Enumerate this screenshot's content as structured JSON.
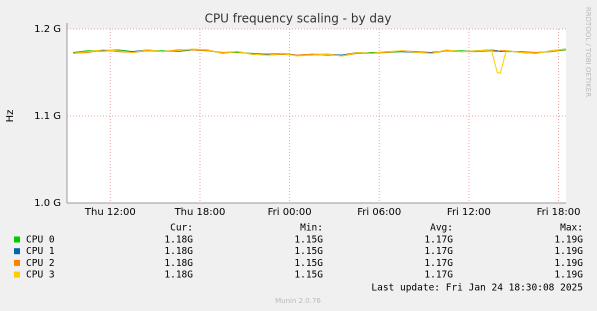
{
  "chart_data": {
    "type": "line",
    "title": "CPU frequency scaling - by day",
    "y_label": "Hz",
    "side_text": "RRDTOOL / TOBI OETIKER",
    "x": [
      9.5,
      10.5,
      11.5,
      12.5,
      13.5,
      14.5,
      15.5,
      16.5,
      17.5,
      18.5,
      19.5,
      20.5,
      21.5,
      22.5,
      23.5,
      24.5,
      25.5,
      26.5,
      27.5,
      28.5,
      29.5,
      30.5,
      31.5,
      32.5,
      33.5,
      34.5,
      35.5,
      36.5,
      37.5,
      37.9,
      38.1,
      38.5,
      39.5,
      40.5,
      41.5,
      42.5
    ],
    "xlim": [
      9.1,
      42.5
    ],
    "xticks": [
      {
        "value": 12,
        "label": "Thu 12:00"
      },
      {
        "value": 18,
        "label": "Thu 18:00"
      },
      {
        "value": 24,
        "label": "Fri 00:00"
      },
      {
        "value": 30,
        "label": "Fri 06:00"
      },
      {
        "value": 36,
        "label": "Fri 12:00"
      },
      {
        "value": 42,
        "label": "Fri 18:00"
      }
    ],
    "ylim": [
      1.0,
      1.2
    ],
    "yticks": [
      {
        "value": 1.0,
        "label": "1.0 G"
      },
      {
        "value": 1.1,
        "label": "1.1 G"
      },
      {
        "value": 1.2,
        "label": "1.2 G"
      }
    ],
    "grid": true,
    "series": [
      {
        "name": "CPU 0",
        "color": "#00cc00",
        "values": [
          1.173,
          1.175,
          1.175,
          1.176,
          1.174,
          1.175,
          1.175,
          1.174,
          1.176,
          1.175,
          1.173,
          1.173,
          1.172,
          1.171,
          1.171,
          1.17,
          1.171,
          1.17,
          1.17,
          1.172,
          1.173,
          1.173,
          1.174,
          1.174,
          1.173,
          1.175,
          1.175,
          1.174,
          1.175,
          1.174,
          1.175,
          1.174,
          1.174,
          1.173,
          1.174,
          1.176
        ]
      },
      {
        "name": "CPU 1",
        "color": "#0066b3",
        "values": [
          1.172,
          1.174,
          1.175,
          1.175,
          1.174,
          1.176,
          1.174,
          1.175,
          1.176,
          1.176,
          1.172,
          1.174,
          1.171,
          1.171,
          1.172,
          1.17,
          1.17,
          1.171,
          1.17,
          1.173,
          1.172,
          1.174,
          1.174,
          1.173,
          1.173,
          1.175,
          1.174,
          1.175,
          1.176,
          1.175,
          1.174,
          1.175,
          1.173,
          1.172,
          1.175,
          1.177
        ]
      },
      {
        "name": "CPU 2",
        "color": "#ff8000",
        "values": [
          1.172,
          1.173,
          1.176,
          1.174,
          1.173,
          1.175,
          1.174,
          1.176,
          1.176,
          1.175,
          1.173,
          1.174,
          1.171,
          1.17,
          1.171,
          1.17,
          1.171,
          1.171,
          1.169,
          1.172,
          1.172,
          1.173,
          1.175,
          1.174,
          1.172,
          1.175,
          1.174,
          1.174,
          1.176,
          1.174,
          1.175,
          1.175,
          1.173,
          1.173,
          1.174,
          1.177
        ]
      },
      {
        "name": "CPU 3",
        "color": "#ffcc00",
        "values": [
          1.172,
          1.174,
          1.176,
          1.175,
          1.173,
          1.176,
          1.174,
          1.175,
          1.177,
          1.176,
          1.172,
          1.174,
          1.171,
          1.17,
          1.172,
          1.169,
          1.17,
          1.171,
          1.169,
          1.173,
          1.172,
          1.174,
          1.175,
          1.173,
          1.172,
          1.176,
          1.174,
          1.175,
          1.176,
          1.15,
          1.149,
          1.175,
          1.173,
          1.172,
          1.175,
          1.177
        ]
      }
    ],
    "legend_table": {
      "headers": [
        "Cur:",
        "Min:",
        "Avg:",
        "Max:"
      ],
      "rows": [
        [
          "1.18G",
          "1.15G",
          "1.17G",
          "1.19G"
        ],
        [
          "1.18G",
          "1.15G",
          "1.17G",
          "1.19G"
        ],
        [
          "1.18G",
          "1.15G",
          "1.17G",
          "1.19G"
        ],
        [
          "1.18G",
          "1.15G",
          "1.17G",
          "1.19G"
        ]
      ]
    },
    "last_update": "Last update: Fri Jan 24 18:30:08 2025",
    "footer": "Munin 2.0.76"
  }
}
